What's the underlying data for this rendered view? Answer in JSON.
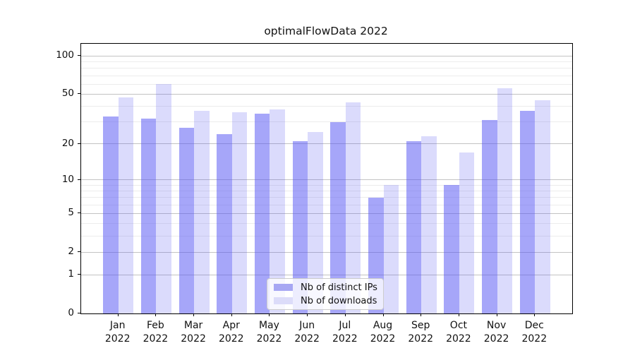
{
  "chart_data": {
    "type": "bar",
    "title": "optimalFlowData 2022",
    "categories": [
      "Jan",
      "Feb",
      "Mar",
      "Apr",
      "May",
      "Jun",
      "Jul",
      "Aug",
      "Sep",
      "Oct",
      "Nov",
      "Dec"
    ],
    "category_year": "2022",
    "series": [
      {
        "name": "Nb of distinct IPs",
        "color": "rgba(84,84,243,0.52)",
        "swatch_color": "#a7a7f3",
        "values": [
          33,
          32,
          27,
          24,
          35,
          21,
          30,
          7,
          21,
          9,
          31,
          37
        ]
      },
      {
        "name": "Nb of downloads",
        "color": "rgba(84,84,243,0.21)",
        "swatch_color": "#dcdcf9",
        "values": [
          47,
          60,
          37,
          36,
          38,
          25,
          43,
          9,
          23,
          17,
          56,
          45
        ]
      }
    ],
    "xlabel": "",
    "ylabel": "",
    "yscale": "log1p",
    "ylim": [
      0,
      125
    ],
    "y_major_ticks": [
      0,
      1,
      2,
      5,
      10,
      20,
      50,
      100
    ],
    "y_minor_ticks": [
      3,
      4,
      6,
      7,
      8,
      9,
      30,
      40,
      60,
      70,
      80,
      90
    ],
    "grid": true,
    "legend_position": "lower center",
    "colors": {
      "grid_major": "#c3c3c3",
      "grid_minor": "#ececec",
      "spine": "#000000",
      "text": "#111111"
    }
  }
}
